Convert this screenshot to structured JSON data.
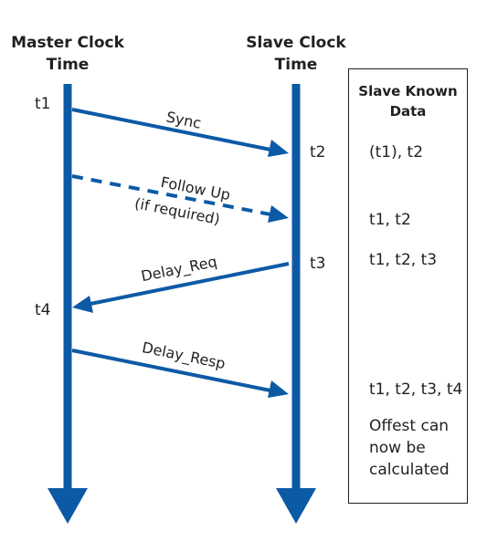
{
  "master": {
    "title_line1": "Master Clock",
    "title_line2": "Time"
  },
  "slave": {
    "title_line1": "Slave Clock",
    "title_line2": "Time"
  },
  "timestamps": {
    "t1": "t1",
    "t2": "t2",
    "t3": "t3",
    "t4": "t4"
  },
  "messages": {
    "sync": "Sync",
    "follow_up": "Follow Up",
    "follow_up_note": "(if required)",
    "delay_req": "Delay_Req",
    "delay_resp": "Delay_Resp"
  },
  "panel": {
    "title_line1": "Slave Known",
    "title_line2": "Data",
    "rows": [
      "(t1), t2",
      "t1, t2",
      "t1, t2, t3",
      "t1, t2, t3, t4"
    ],
    "note_line1": "Offest can",
    "note_line2": "now be",
    "note_line3": "calculated"
  },
  "colors": {
    "line": "#0c5aa6",
    "text": "#231f20"
  }
}
